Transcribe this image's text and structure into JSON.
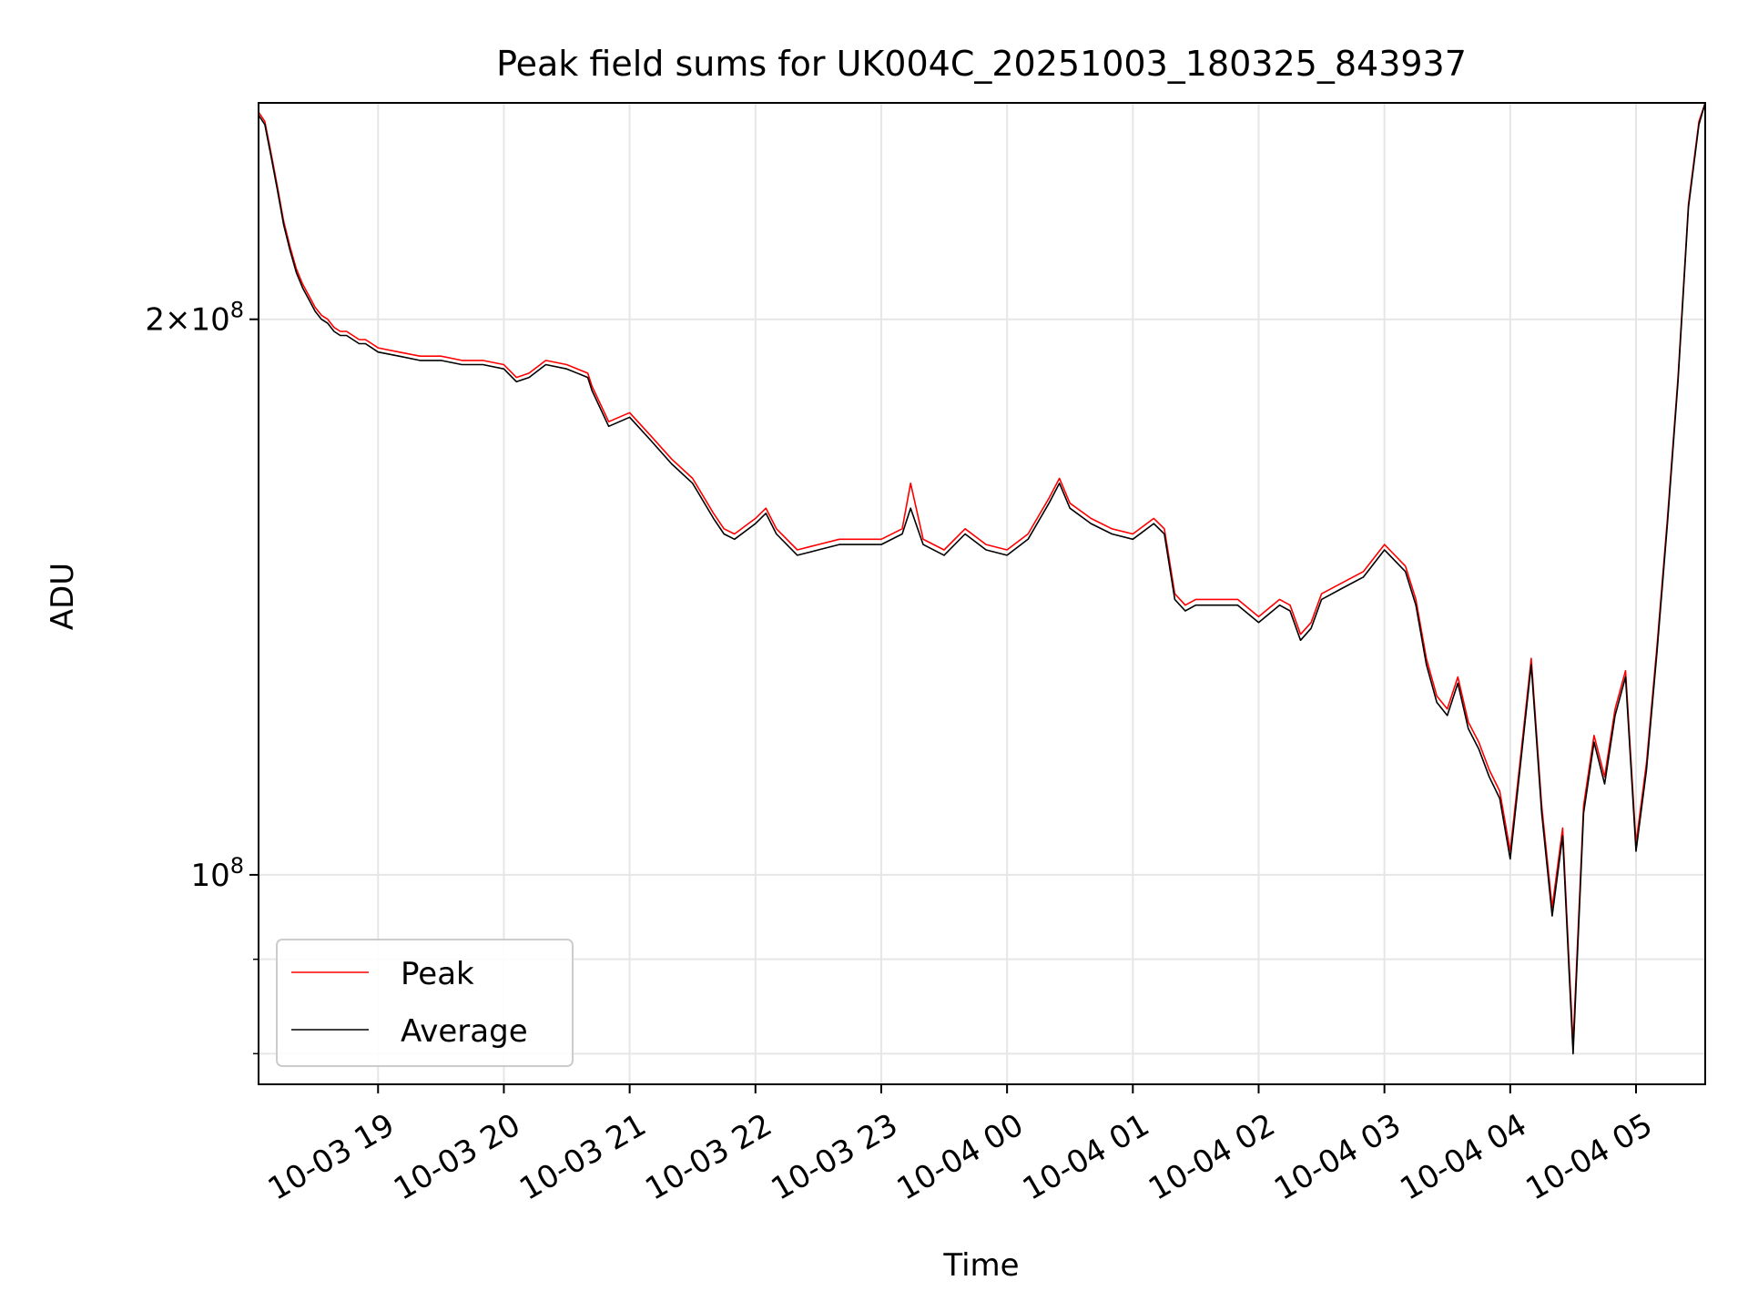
{
  "chart_data": {
    "type": "line",
    "title": "Peak field sums for UK004C_20251003_180325_843937",
    "xlabel": "Time",
    "ylabel": "ADU",
    "yscale": "log",
    "ylim": [
      77000000,
      262000000
    ],
    "xlim": [
      "2025-10-03 18:03",
      "2025-10-04 05:33"
    ],
    "grid": true,
    "legend_position": "lower-left",
    "x_ticks": [
      {
        "t": "2025-10-03 19:00",
        "label": "10-03 19"
      },
      {
        "t": "2025-10-03 20:00",
        "label": "10-03 20"
      },
      {
        "t": "2025-10-03 21:00",
        "label": "10-03 21"
      },
      {
        "t": "2025-10-03 22:00",
        "label": "10-03 22"
      },
      {
        "t": "2025-10-03 23:00",
        "label": "10-03 23"
      },
      {
        "t": "2025-10-04 00:00",
        "label": "10-04 00"
      },
      {
        "t": "2025-10-04 01:00",
        "label": "10-04 01"
      },
      {
        "t": "2025-10-04 02:00",
        "label": "10-04 02"
      },
      {
        "t": "2025-10-04 03:00",
        "label": "10-04 03"
      },
      {
        "t": "2025-10-04 04:00",
        "label": "10-04 04"
      },
      {
        "t": "2025-10-04 05:00",
        "label": "10-04 05"
      }
    ],
    "y_ticks_major": [
      {
        "value": 100000000,
        "base": "10",
        "exp": "8",
        "coef": ""
      },
      {
        "value": 200000000,
        "base": "10",
        "exp": "8",
        "coef": "2×"
      }
    ],
    "y_ticks_minor": [
      80000000,
      90000000
    ],
    "series_names": [
      "Peak",
      "Average"
    ],
    "colors": {
      "Peak": "#ff0000",
      "Average": "#000000",
      "grid": "#e6e6e6"
    },
    "series": [
      {
        "name": "Average",
        "x": [
          "2025-10-03 18:03",
          "2025-10-03 18:06",
          "2025-10-03 18:09",
          "2025-10-03 18:12",
          "2025-10-03 18:15",
          "2025-10-03 18:18",
          "2025-10-03 18:21",
          "2025-10-03 18:24",
          "2025-10-03 18:27",
          "2025-10-03 18:30",
          "2025-10-03 18:33",
          "2025-10-03 18:36",
          "2025-10-03 18:39",
          "2025-10-03 18:42",
          "2025-10-03 18:45",
          "2025-10-03 18:48",
          "2025-10-03 18:51",
          "2025-10-03 18:54",
          "2025-10-03 18:57",
          "2025-10-03 19:00",
          "2025-10-03 19:10",
          "2025-10-03 19:20",
          "2025-10-03 19:30",
          "2025-10-03 19:40",
          "2025-10-03 19:50",
          "2025-10-03 20:00",
          "2025-10-03 20:06",
          "2025-10-03 20:12",
          "2025-10-03 20:20",
          "2025-10-03 20:30",
          "2025-10-03 20:40",
          "2025-10-03 20:42",
          "2025-10-03 20:50",
          "2025-10-03 21:00",
          "2025-10-03 21:10",
          "2025-10-03 21:20",
          "2025-10-03 21:30",
          "2025-10-03 21:40",
          "2025-10-03 21:45",
          "2025-10-03 21:50",
          "2025-10-03 22:00",
          "2025-10-03 22:05",
          "2025-10-03 22:10",
          "2025-10-03 22:20",
          "2025-10-03 22:30",
          "2025-10-03 22:40",
          "2025-10-03 22:50",
          "2025-10-03 23:00",
          "2025-10-03 23:10",
          "2025-10-03 23:14",
          "2025-10-03 23:20",
          "2025-10-03 23:30",
          "2025-10-03 23:40",
          "2025-10-03 23:50",
          "2025-10-04 00:00",
          "2025-10-04 00:10",
          "2025-10-04 00:20",
          "2025-10-04 00:25",
          "2025-10-04 00:30",
          "2025-10-04 00:40",
          "2025-10-04 00:50",
          "2025-10-04 01:00",
          "2025-10-04 01:10",
          "2025-10-04 01:15",
          "2025-10-04 01:20",
          "2025-10-04 01:25",
          "2025-10-04 01:30",
          "2025-10-04 01:40",
          "2025-10-04 01:50",
          "2025-10-04 02:00",
          "2025-10-04 02:10",
          "2025-10-04 02:15",
          "2025-10-04 02:20",
          "2025-10-04 02:25",
          "2025-10-04 02:30",
          "2025-10-04 02:40",
          "2025-10-04 02:50",
          "2025-10-04 03:00",
          "2025-10-04 03:10",
          "2025-10-04 03:15",
          "2025-10-04 03:20",
          "2025-10-04 03:25",
          "2025-10-04 03:30",
          "2025-10-04 03:35",
          "2025-10-04 03:40",
          "2025-10-04 03:45",
          "2025-10-04 03:50",
          "2025-10-04 03:55",
          "2025-10-04 04:00",
          "2025-10-04 04:05",
          "2025-10-04 04:10",
          "2025-10-04 04:15",
          "2025-10-04 04:20",
          "2025-10-04 04:25",
          "2025-10-04 04:28",
          "2025-10-04 04:30",
          "2025-10-04 04:35",
          "2025-10-04 04:40",
          "2025-10-04 04:45",
          "2025-10-04 04:50",
          "2025-10-04 04:55",
          "2025-10-04 05:00",
          "2025-10-04 05:05",
          "2025-10-04 05:10",
          "2025-10-04 05:15",
          "2025-10-04 05:20",
          "2025-10-04 05:25",
          "2025-10-04 05:30",
          "2025-10-04 05:33"
        ],
        "values": [
          258000000,
          255000000,
          245000000,
          235000000,
          225000000,
          218000000,
          212000000,
          208000000,
          205000000,
          202000000,
          200000000,
          199000000,
          197000000,
          196000000,
          196000000,
          195000000,
          194000000,
          194000000,
          193000000,
          192000000,
          191000000,
          190000000,
          190000000,
          189000000,
          189000000,
          188000000,
          185000000,
          186000000,
          189000000,
          188000000,
          186000000,
          183000000,
          175000000,
          177000000,
          172000000,
          167000000,
          163000000,
          156000000,
          153000000,
          152000000,
          155000000,
          157000000,
          153000000,
          149000000,
          150000000,
          151000000,
          151000000,
          151000000,
          153000000,
          158000000,
          151000000,
          149000000,
          153000000,
          150000000,
          149000000,
          152000000,
          159000000,
          163000000,
          158000000,
          155000000,
          153000000,
          152000000,
          155000000,
          153000000,
          141000000,
          139000000,
          140000000,
          140000000,
          140000000,
          137000000,
          140000000,
          139000000,
          134000000,
          136000000,
          141000000,
          143000000,
          145000000,
          150000000,
          146000000,
          140000000,
          130000000,
          124000000,
          122000000,
          127000000,
          120000000,
          117000000,
          113000000,
          110000000,
          102000000,
          115000000,
          130000000,
          108000000,
          95000000,
          105000000,
          89000000,
          80000000,
          108000000,
          118000000,
          112000000,
          122000000,
          128000000,
          103000000,
          114000000,
          132000000,
          155000000,
          185000000,
          230000000,
          255000000,
          262000000
        ]
      },
      {
        "name": "Peak",
        "x": [
          "2025-10-03 18:03",
          "2025-10-03 18:06",
          "2025-10-03 18:09",
          "2025-10-03 18:12",
          "2025-10-03 18:15",
          "2025-10-03 18:18",
          "2025-10-03 18:21",
          "2025-10-03 18:24",
          "2025-10-03 18:27",
          "2025-10-03 18:30",
          "2025-10-03 18:33",
          "2025-10-03 18:36",
          "2025-10-03 18:39",
          "2025-10-03 18:42",
          "2025-10-03 18:45",
          "2025-10-03 18:48",
          "2025-10-03 18:51",
          "2025-10-03 18:54",
          "2025-10-03 18:57",
          "2025-10-03 19:00",
          "2025-10-03 19:10",
          "2025-10-03 19:20",
          "2025-10-03 19:30",
          "2025-10-03 19:40",
          "2025-10-03 19:50",
          "2025-10-03 20:00",
          "2025-10-03 20:06",
          "2025-10-03 20:12",
          "2025-10-03 20:20",
          "2025-10-03 20:30",
          "2025-10-03 20:40",
          "2025-10-03 20:42",
          "2025-10-03 20:50",
          "2025-10-03 21:00",
          "2025-10-03 21:10",
          "2025-10-03 21:20",
          "2025-10-03 21:30",
          "2025-10-03 21:40",
          "2025-10-03 21:45",
          "2025-10-03 21:50",
          "2025-10-03 22:00",
          "2025-10-03 22:05",
          "2025-10-03 22:10",
          "2025-10-03 22:20",
          "2025-10-03 22:30",
          "2025-10-03 22:40",
          "2025-10-03 22:50",
          "2025-10-03 23:00",
          "2025-10-03 23:10",
          "2025-10-03 23:14",
          "2025-10-03 23:20",
          "2025-10-03 23:30",
          "2025-10-03 23:40",
          "2025-10-03 23:50",
          "2025-10-04 00:00",
          "2025-10-04 00:10",
          "2025-10-04 00:20",
          "2025-10-04 00:25",
          "2025-10-04 00:30",
          "2025-10-04 00:40",
          "2025-10-04 00:50",
          "2025-10-04 01:00",
          "2025-10-04 01:10",
          "2025-10-04 01:15",
          "2025-10-04 01:20",
          "2025-10-04 01:25",
          "2025-10-04 01:30",
          "2025-10-04 01:40",
          "2025-10-04 01:50",
          "2025-10-04 02:00",
          "2025-10-04 02:10",
          "2025-10-04 02:15",
          "2025-10-04 02:20",
          "2025-10-04 02:25",
          "2025-10-04 02:30",
          "2025-10-04 02:40",
          "2025-10-04 02:50",
          "2025-10-04 03:00",
          "2025-10-04 03:10",
          "2025-10-04 03:15",
          "2025-10-04 03:20",
          "2025-10-04 03:25",
          "2025-10-04 03:30",
          "2025-10-04 03:35",
          "2025-10-04 03:40",
          "2025-10-04 03:45",
          "2025-10-04 03:50",
          "2025-10-04 03:55",
          "2025-10-04 04:00",
          "2025-10-04 04:05",
          "2025-10-04 04:10",
          "2025-10-04 04:15",
          "2025-10-04 04:20",
          "2025-10-04 04:25",
          "2025-10-04 04:28",
          "2025-10-04 04:30",
          "2025-10-04 04:35",
          "2025-10-04 04:40",
          "2025-10-04 04:45",
          "2025-10-04 04:50",
          "2025-10-04 04:55",
          "2025-10-04 05:00",
          "2025-10-04 05:05",
          "2025-10-04 05:10",
          "2025-10-04 05:15",
          "2025-10-04 05:20",
          "2025-10-04 05:25",
          "2025-10-04 05:30",
          "2025-10-04 05:33"
        ],
        "values": [
          259000000,
          256000000,
          246000000,
          236000000,
          226000000,
          219000000,
          213000000,
          209000000,
          206000000,
          203000000,
          201000000,
          200000000,
          198000000,
          197000000,
          197000000,
          196000000,
          195000000,
          195000000,
          194000000,
          193000000,
          192000000,
          191000000,
          191000000,
          190000000,
          190000000,
          189000000,
          186000000,
          187000000,
          190000000,
          189000000,
          187000000,
          184000000,
          176000000,
          178000000,
          173000000,
          168000000,
          164000000,
          157000000,
          154000000,
          153000000,
          156000000,
          158000000,
          154000000,
          150000000,
          151000000,
          152000000,
          152000000,
          152000000,
          154000000,
          163000000,
          152000000,
          150000000,
          154000000,
          151000000,
          150000000,
          153000000,
          160000000,
          164000000,
          159000000,
          156000000,
          154000000,
          153000000,
          156000000,
          154000000,
          142000000,
          140000000,
          141000000,
          141000000,
          141000000,
          138000000,
          141000000,
          140000000,
          135000000,
          137000000,
          142000000,
          144000000,
          146000000,
          151000000,
          147000000,
          141000000,
          131000000,
          125000000,
          123000000,
          128000000,
          121000000,
          118000000,
          114000000,
          111000000,
          103000000,
          116000000,
          131000000,
          109000000,
          96000000,
          106000000,
          90000000,
          81000000,
          109000000,
          119000000,
          113000000,
          123000000,
          129000000,
          104000000,
          115000000,
          133000000,
          156000000,
          186000000,
          231000000,
          256000000,
          262000000
        ]
      }
    ]
  }
}
